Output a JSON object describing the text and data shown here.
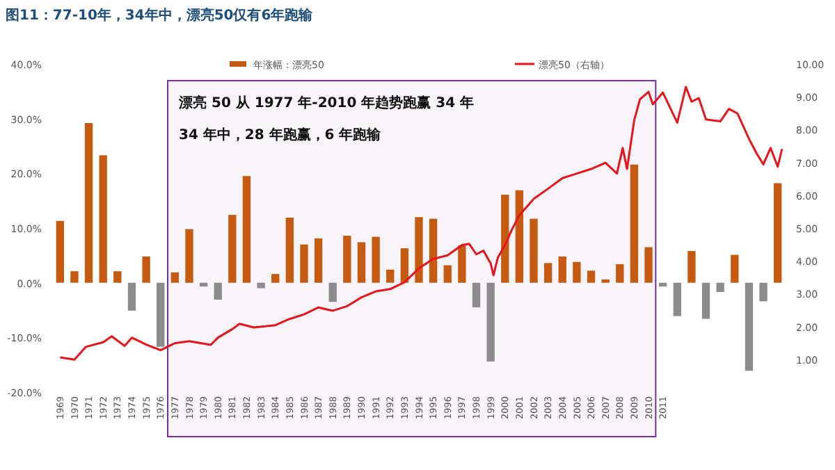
{
  "chart_data": {
    "type": "bar",
    "title": "图11：77-10年，34年中，漂亮50仅有6年跑输",
    "x": [
      1969,
      1970,
      1971,
      1972,
      1973,
      1974,
      1975,
      1976,
      1977,
      1978,
      1979,
      1980,
      1981,
      1982,
      1983,
      1984,
      1985,
      1986,
      1987,
      1988,
      1989,
      1990,
      1991,
      1992,
      1993,
      1994,
      1995,
      1996,
      1997,
      1998,
      1999,
      2000,
      2001,
      2002,
      2003,
      2004,
      2005,
      2006,
      2007,
      2008,
      2009,
      2010,
      2011,
      2012,
      2013,
      2014,
      2015,
      2016,
      2017,
      2018,
      2019
    ],
    "series": [
      {
        "name": "年涨幅：漂亮50",
        "color": "#c55a11",
        "values": [
          11.3,
          2.1,
          29.2,
          23.3,
          2.1,
          -5.1,
          4.8,
          -11.7,
          1.9,
          9.8,
          -0.7,
          -3.1,
          12.4,
          19.5,
          -1.0,
          1.6,
          11.9,
          7.0,
          8.1,
          -3.5,
          8.6,
          7.4,
          8.4,
          2.4,
          6.3,
          12.0,
          11.7,
          3.2,
          6.8,
          -4.5,
          -14.4,
          16.1,
          16.9,
          11.7,
          3.6,
          4.8,
          3.8,
          2.2,
          0.6,
          3.4,
          21.6,
          6.5,
          -0.7,
          -6.1,
          5.8,
          -6.6,
          -1.7,
          5.1,
          -16.1,
          -3.4,
          18.2
        ],
        "colors": [
          "#c55a11",
          "#c55a11",
          "#c55a11",
          "#c55a11",
          "#c55a11",
          "#8c8c8c",
          "#c55a11",
          "#8c8c8c",
          "#c55a11",
          "#c55a11",
          "#8c8c8c",
          "#8c8c8c",
          "#c55a11",
          "#c55a11",
          "#8c8c8c",
          "#c55a11",
          "#c55a11",
          "#c55a11",
          "#c55a11",
          "#8c8c8c",
          "#c55a11",
          "#c55a11",
          "#c55a11",
          "#c55a11",
          "#c55a11",
          "#c55a11",
          "#c55a11",
          "#c55a11",
          "#c55a11",
          "#8c8c8c",
          "#8c8c8c",
          "#c55a11",
          "#c55a11",
          "#c55a11",
          "#c55a11",
          "#c55a11",
          "#c55a11",
          "#c55a11",
          "#c55a11",
          "#c55a11",
          "#c55a11",
          "#c55a11",
          "#8c8c8c",
          "#8c8c8c",
          "#c55a11",
          "#8c8c8c",
          "#8c8c8c",
          "#c55a11",
          "#8c8c8c",
          "#8c8c8c",
          "#c55a11"
        ]
      },
      {
        "name": "漂亮50（右轴）",
        "type": "line",
        "axis": "y2",
        "color": "#e8141b",
        "x": [
          1969,
          1970,
          1970.8,
          1972,
          1972.6,
          1973.5,
          1974,
          1975,
          1976,
          1977,
          1978,
          1979.5,
          1980,
          1981,
          1981.5,
          1982.5,
          1984,
          1985,
          1986,
          1987,
          1988,
          1989,
          1990,
          1991,
          1992,
          1993,
          1994,
          1995,
          1996,
          1997,
          1997.5,
          1998,
          1998.5,
          1999,
          1999.2,
          1999.5,
          2000,
          2000.5,
          2001,
          2002,
          2003,
          2004,
          2005,
          2006,
          2007,
          2007.8,
          2008.2,
          2008.5,
          2009,
          2009.4,
          2010,
          2010.3,
          2011,
          2012,
          2012.6,
          2013,
          2013.5,
          2014,
          2015,
          2015.6,
          2016.2,
          2017,
          2017.5,
          2018,
          2018.5,
          2019,
          2019.3
        ],
        "values": [
          1.06,
          0.99,
          1.38,
          1.52,
          1.7,
          1.41,
          1.66,
          1.45,
          1.28,
          1.49,
          1.55,
          1.44,
          1.66,
          1.92,
          2.08,
          1.97,
          2.04,
          2.23,
          2.37,
          2.58,
          2.48,
          2.62,
          2.89,
          3.07,
          3.14,
          3.35,
          3.77,
          4.06,
          4.17,
          4.48,
          4.52,
          4.2,
          4.31,
          3.92,
          3.56,
          4.1,
          4.48,
          4.97,
          5.39,
          5.89,
          6.2,
          6.52,
          6.66,
          6.8,
          6.99,
          6.66,
          7.44,
          6.8,
          8.28,
          8.92,
          9.15,
          8.77,
          9.13,
          8.21,
          9.3,
          8.85,
          8.96,
          8.31,
          8.25,
          8.63,
          8.49,
          7.72,
          7.3,
          6.94,
          7.44,
          6.87,
          7.41
        ]
      }
    ],
    "xlim": [
      1968.5,
      2019.5
    ],
    "xticks": [
      1969,
      1970,
      1971,
      1972,
      1973,
      1974,
      1975,
      1976,
      1977,
      1978,
      1979,
      1980,
      1981,
      1982,
      1983,
      1984,
      1985,
      1986,
      1987,
      1988,
      1989,
      1990,
      1991,
      1992,
      1993,
      1994,
      1995,
      1996,
      1997,
      1998,
      1999,
      2000,
      2001,
      2002,
      2003,
      2004,
      2005,
      2006,
      2007,
      2008,
      2009,
      2010,
      2011
    ],
    "ylim": [
      -20,
      40
    ],
    "yticks": [
      {
        "value": -20,
        "label": "-20.0%"
      },
      {
        "value": -10,
        "label": "-10.0%"
      },
      {
        "value": 0,
        "label": "0.0%"
      },
      {
        "value": 10,
        "label": "10.0%"
      },
      {
        "value": 20,
        "label": "20.0%"
      },
      {
        "value": 30,
        "label": "30.0%"
      },
      {
        "value": 40,
        "label": "40.0%"
      }
    ],
    "y2lim": [
      0,
      10
    ],
    "y2ticks": [
      {
        "value": 1,
        "label": "1.00"
      },
      {
        "value": 2,
        "label": "2.00"
      },
      {
        "value": 3,
        "label": "3.00"
      },
      {
        "value": 4,
        "label": "4.00"
      },
      {
        "value": 5,
        "label": "5.00"
      },
      {
        "value": 6,
        "label": "6.00"
      },
      {
        "value": 7,
        "label": "7.00"
      },
      {
        "value": 8,
        "label": "8.00"
      },
      {
        "value": 9,
        "label": "9.00"
      },
      {
        "value": 10,
        "label": "10.00"
      }
    ],
    "bands": [
      {
        "axis": "x",
        "from": 1976.5,
        "to": 2010.5,
        "color": "#7030a0"
      }
    ],
    "annotations": [
      "漂亮 50 从 1977 年-2010 年趋势跑赢 34 年",
      "34 年中，28 年跑赢，6 年跑输"
    ],
    "legend": "top",
    "grid": false
  }
}
